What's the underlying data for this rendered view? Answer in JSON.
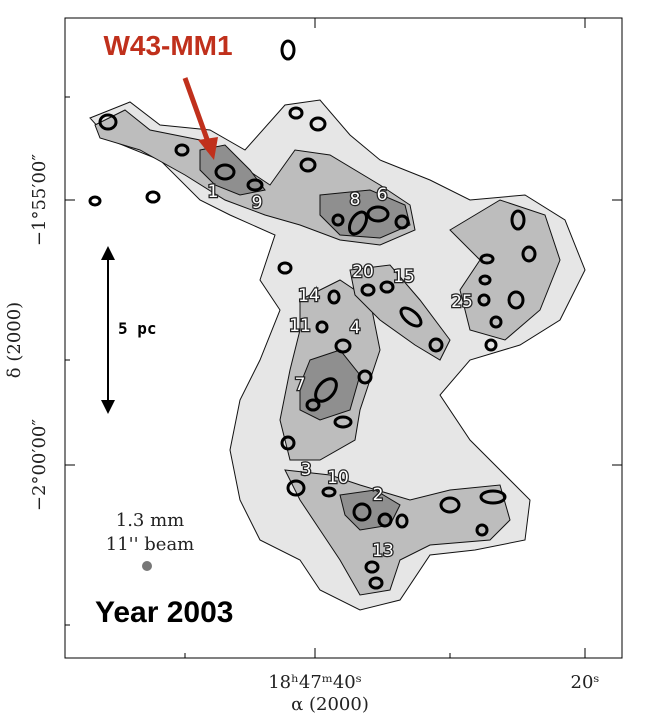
{
  "figure": {
    "callout": "W43-MM1",
    "scale_bar": "5 pc",
    "beam": {
      "wavelength": "1.3 mm",
      "size": "11'' beam"
    },
    "year": "Year 2003",
    "y_axis": {
      "label": "δ (2000)",
      "ticks": [
        "−1°55′00″",
        "−2°00′00″"
      ]
    },
    "x_axis": {
      "label": "α (2000)",
      "ticks": [
        "18ʰ47ᵐ40ˢ",
        "20ˢ"
      ]
    },
    "sources": [
      "1",
      "9",
      "8",
      "6",
      "20",
      "15",
      "14",
      "25",
      "11",
      "4",
      "7",
      "3",
      "10",
      "2",
      "13"
    ]
  }
}
